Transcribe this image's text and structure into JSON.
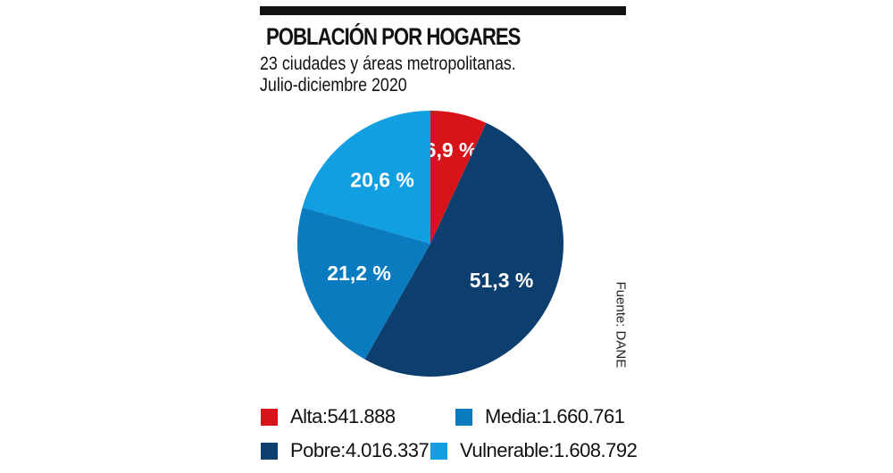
{
  "chart_data": {
    "type": "pie",
    "title": "POBLACIÓN POR HOGARES",
    "subtitle": [
      "23 ciudades y áreas metropolitanas.",
      "Julio-diciembre 2020"
    ],
    "source": "Fuente: DANE",
    "slices": [
      {
        "name": "Alta",
        "percent": 6.9,
        "label": "6,9 %",
        "value": "541.888",
        "color": "#d7141a"
      },
      {
        "name": "Pobre",
        "percent": 51.3,
        "label": "51,3 %",
        "value": "4.016.337",
        "color": "#0d3f6e"
      },
      {
        "name": "Media",
        "percent": 21.2,
        "label": "21,2 %",
        "value": "1.660.761",
        "color": "#0a7bbf"
      },
      {
        "name": "Vulnerable",
        "percent": 20.6,
        "label": "20,6 %",
        "value": "1.608.792",
        "color": "#109fe0"
      }
    ],
    "legend": [
      {
        "text": "Alta:",
        "value": "541.888"
      },
      {
        "text": "Pobre:",
        "value": "4.016.337"
      },
      {
        "text": "Media:",
        "value": "1.660.761"
      },
      {
        "text": "Vulnerable:",
        "value": "1.608.792"
      }
    ]
  }
}
